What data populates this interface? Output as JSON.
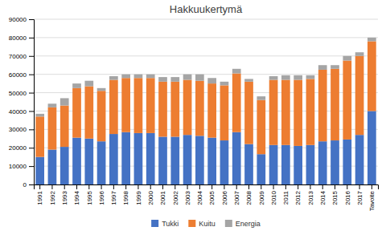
{
  "chart_data": {
    "type": "bar",
    "stacked": true,
    "title": "Hakkuukertymä",
    "categories": [
      "1991",
      "1992",
      "1993",
      "1994",
      "1995",
      "1996",
      "1997",
      "1998",
      "1999",
      "2000",
      "2001",
      "2002",
      "2003",
      "2004",
      "2005",
      "2006",
      "2007",
      "2008",
      "2009",
      "2010",
      "2011",
      "2012",
      "2013",
      "2014",
      "2015",
      "2016",
      "2017",
      "Tavoite"
    ],
    "series": [
      {
        "name": "Tukki",
        "color": "#4472c4",
        "values": [
          15000,
          19000,
          20500,
          25500,
          25000,
          23500,
          27500,
          28500,
          28000,
          28000,
          26000,
          26000,
          27000,
          26500,
          25500,
          24000,
          28500,
          22000,
          16500,
          21500,
          21500,
          21000,
          21500,
          23500,
          24000,
          24500,
          27000,
          40000
        ]
      },
      {
        "name": "Kuitu",
        "color": "#ed7d31",
        "values": [
          22000,
          23000,
          22500,
          27000,
          28500,
          27500,
          29500,
          29500,
          30000,
          30000,
          30000,
          30000,
          30000,
          30000,
          29500,
          30000,
          32000,
          34000,
          29500,
          35500,
          35500,
          36000,
          36000,
          39000,
          39000,
          43000,
          43000,
          38000
        ]
      },
      {
        "name": "Energia",
        "color": "#a5a5a5",
        "values": [
          1500,
          2000,
          4000,
          2500,
          3000,
          1500,
          2000,
          2000,
          2000,
          2000,
          2500,
          2500,
          3000,
          3500,
          3000,
          2000,
          2500,
          1500,
          2000,
          2000,
          2500,
          2500,
          2000,
          2500,
          2000,
          2500,
          2000,
          2000
        ]
      }
    ],
    "ylim": [
      0,
      90000
    ],
    "yticks": [
      0,
      10000,
      20000,
      30000,
      40000,
      50000,
      60000,
      70000,
      80000,
      90000
    ],
    "grid": true,
    "legend": "bottom"
  }
}
